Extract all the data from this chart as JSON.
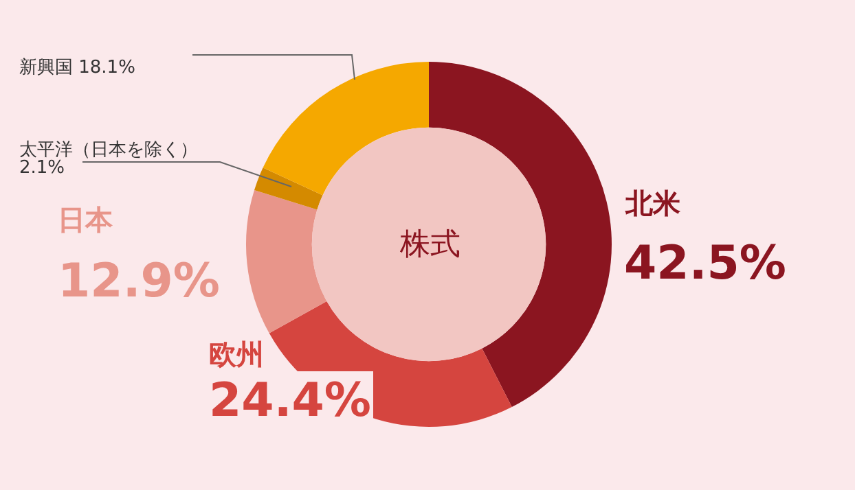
{
  "chart_data": {
    "type": "donut",
    "title": "株式",
    "categories": [
      "北米",
      "欧州",
      "日本",
      "太平洋（日本を除く）",
      "新興国"
    ],
    "values": [
      42.5,
      24.4,
      12.9,
      2.1,
      18.1
    ],
    "value_labels": [
      "42.5%",
      "24.4%",
      "12.9%",
      "2.1%",
      "18.1%"
    ],
    "colors": [
      "#8b1520",
      "#d5453f",
      "#e8958a",
      "#d48a00",
      "#f5a800"
    ]
  }
}
